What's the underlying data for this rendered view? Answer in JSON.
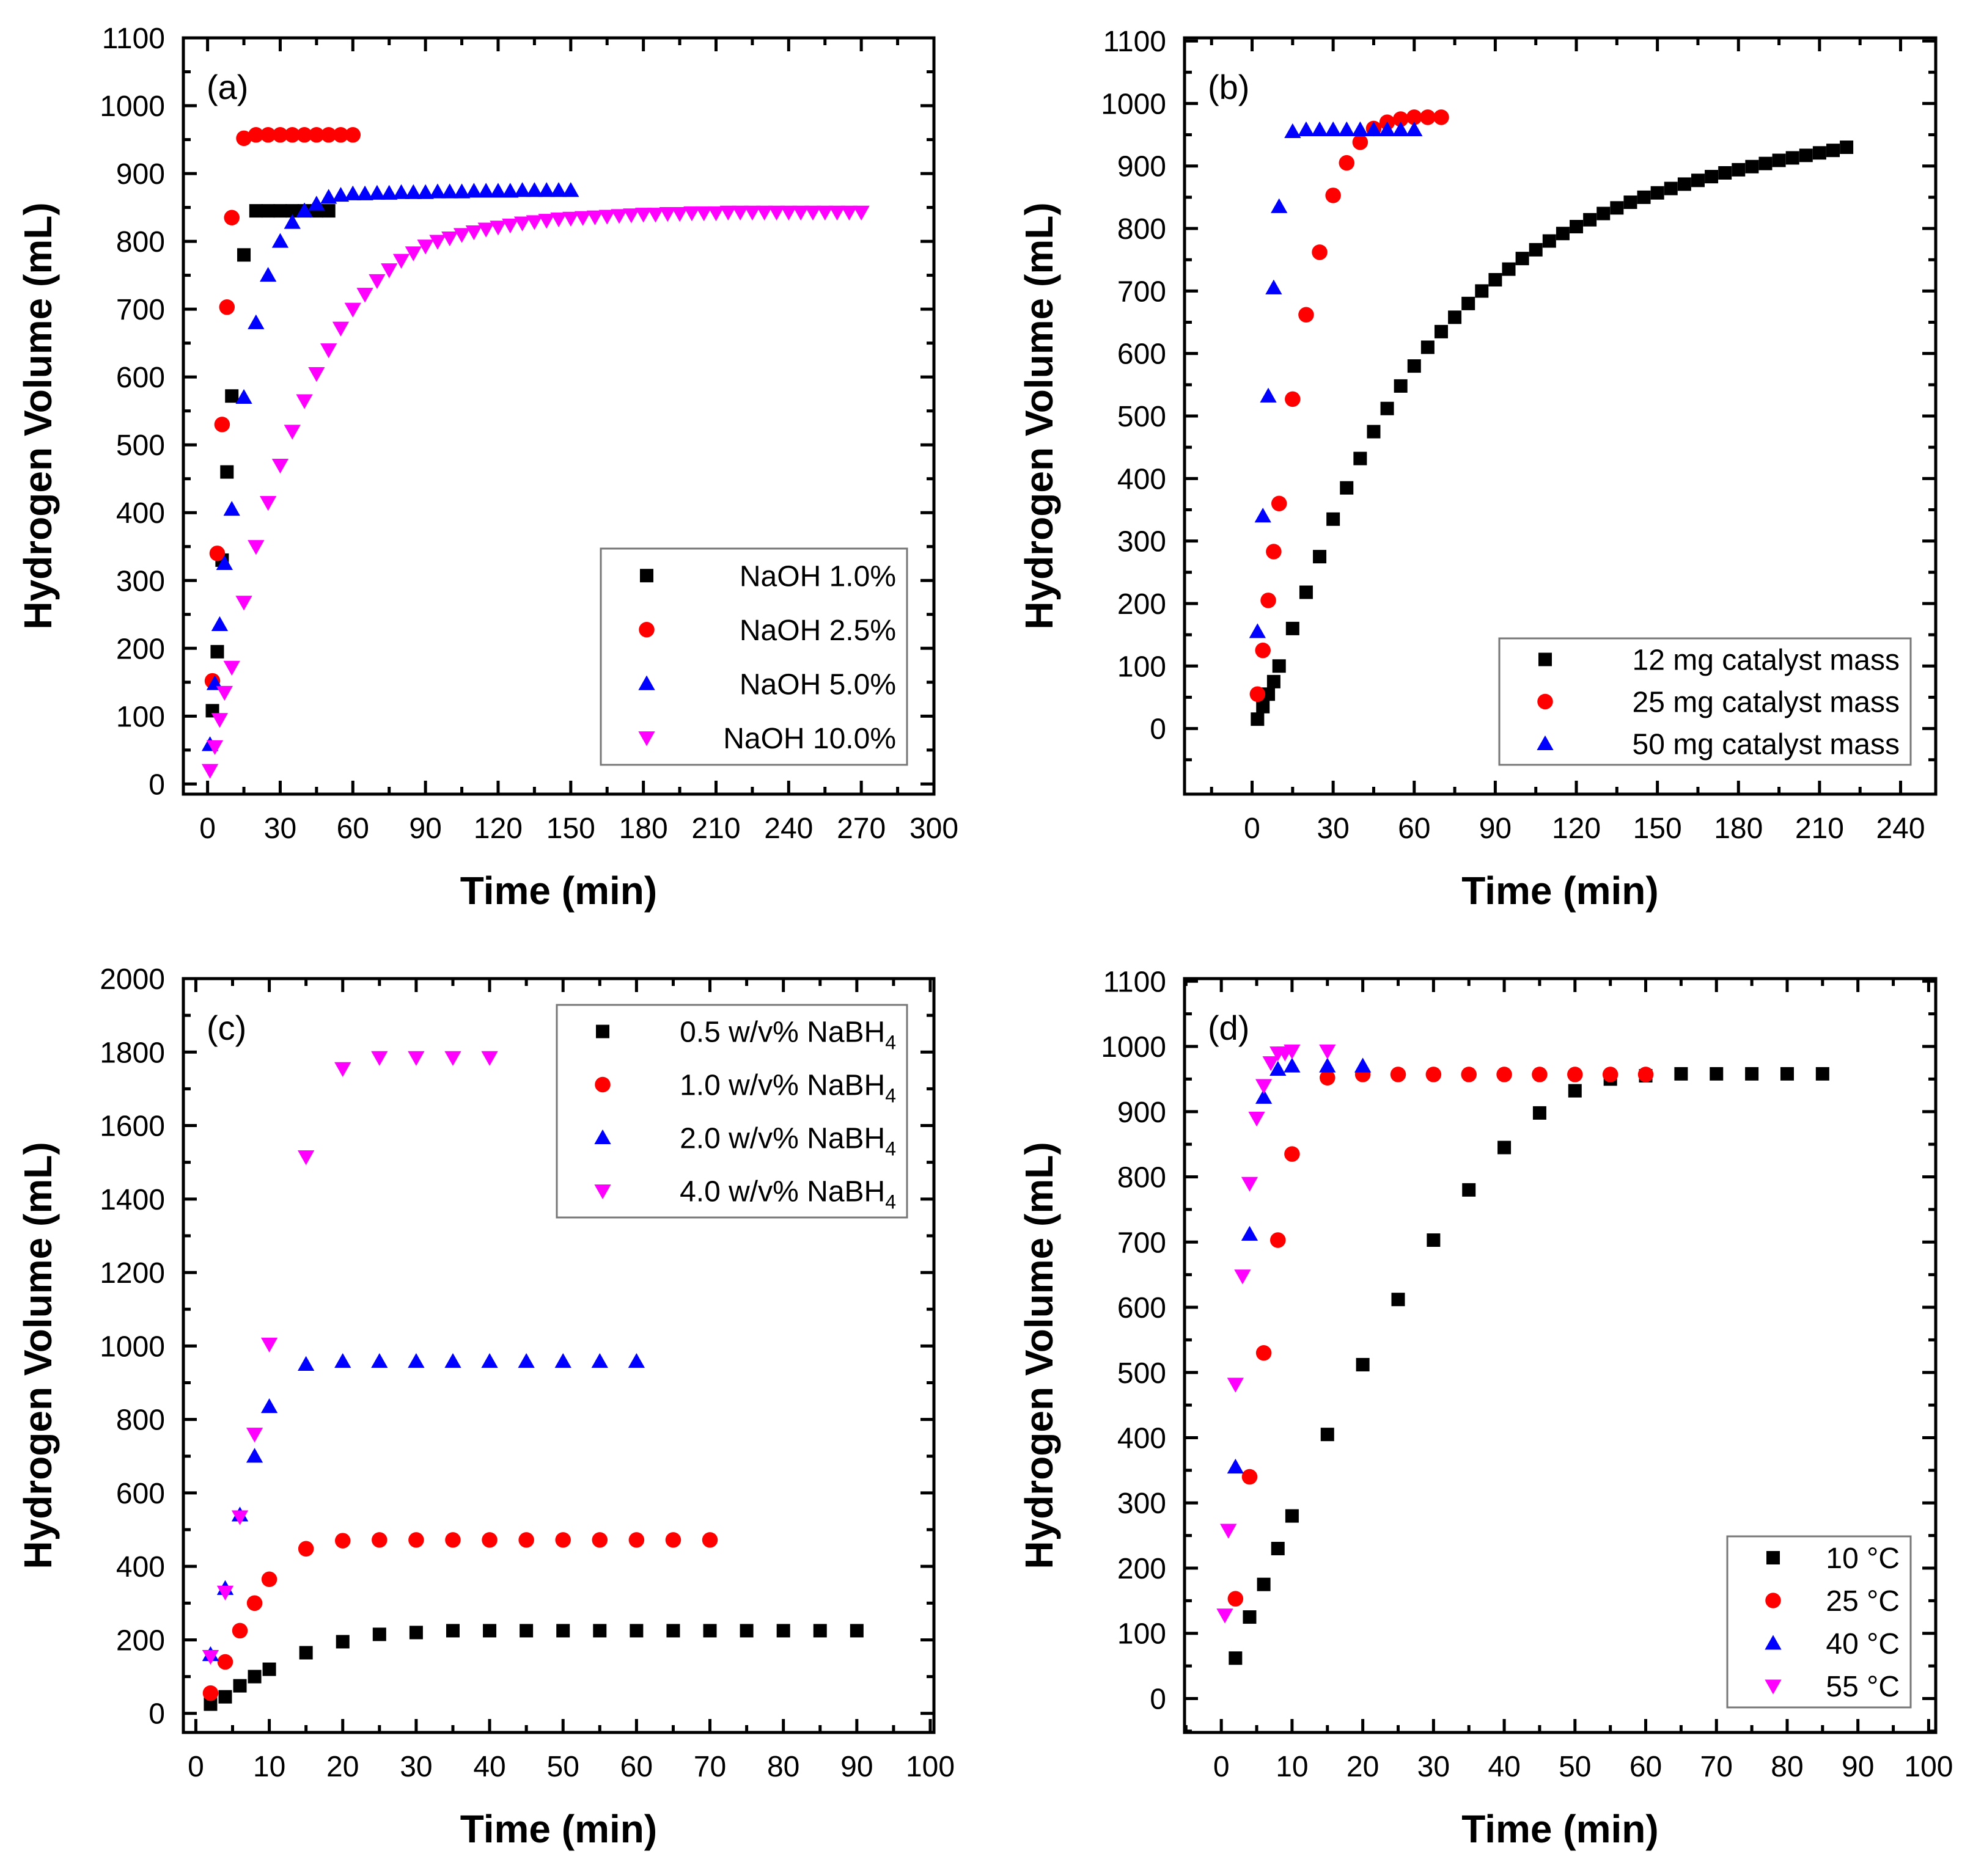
{
  "chart_data": [
    {
      "type": "scatter",
      "panel_label": "(a)",
      "xlabel": "Time (min)",
      "ylabel": "Hydrogen Volume (mL)",
      "xlim": [
        -10,
        300
      ],
      "ylim": [
        -15,
        1100
      ],
      "xticks": [
        0,
        30,
        60,
        90,
        120,
        150,
        180,
        210,
        240,
        270,
        300
      ],
      "yticks": [
        0,
        100,
        200,
        300,
        400,
        500,
        600,
        700,
        800,
        900,
        1000,
        1100
      ],
      "grid": false,
      "legend_position": "bottom-right",
      "series": [
        {
          "name": "NaOH  1.0%",
          "marker": "square",
          "color": "#000000",
          "x": [
            2,
            4,
            6,
            8,
            10,
            15,
            20,
            25,
            30,
            35,
            40,
            45,
            50
          ],
          "y": [
            108,
            195,
            330,
            460,
            572,
            780,
            845,
            845,
            845,
            845,
            845,
            845,
            845
          ]
        },
        {
          "name": "NaOH  2.5%",
          "marker": "circle",
          "color": "#ff0000",
          "x": [
            2,
            4,
            6,
            8,
            10,
            15,
            20,
            25,
            30,
            35,
            40,
            45,
            50,
            55,
            60
          ],
          "y": [
            152,
            340,
            530,
            703,
            835,
            952,
            957,
            957,
            957,
            957,
            957,
            957,
            957,
            957,
            957
          ]
        },
        {
          "name": "NaOH  5.0%",
          "marker": "triangle-up",
          "color": "#0000ff",
          "x": [
            1,
            3,
            5,
            7,
            10,
            15,
            20,
            25,
            30,
            35,
            40,
            45,
            50,
            55,
            60,
            65,
            70,
            75,
            80,
            85,
            90,
            95,
            100,
            105,
            110,
            115,
            120,
            125,
            130,
            135,
            140,
            145,
            150
          ],
          "y": [
            58,
            148,
            235,
            325,
            405,
            570,
            680,
            750,
            800,
            828,
            845,
            855,
            865,
            868,
            870,
            870,
            871,
            871,
            872,
            872,
            872,
            873,
            873,
            873,
            874,
            874,
            874,
            874,
            875,
            875,
            875,
            875,
            875
          ]
        },
        {
          "name": "NaOH  10.0%",
          "marker": "triangle-down",
          "color": "#ff00ff",
          "x": [
            1,
            3,
            5,
            7,
            10,
            15,
            20,
            25,
            30,
            35,
            40,
            45,
            50,
            55,
            60,
            65,
            70,
            75,
            80,
            85,
            90,
            95,
            100,
            105,
            110,
            115,
            120,
            125,
            130,
            135,
            140,
            145,
            150,
            155,
            160,
            165,
            170,
            175,
            180,
            185,
            190,
            195,
            200,
            205,
            210,
            215,
            220,
            225,
            230,
            235,
            240,
            245,
            250,
            255,
            260,
            265,
            270
          ],
          "y": [
            20,
            55,
            95,
            135,
            172,
            268,
            350,
            415,
            470,
            520,
            565,
            605,
            640,
            672,
            700,
            722,
            742,
            758,
            772,
            783,
            793,
            800,
            805,
            810,
            814,
            818,
            821,
            824,
            827,
            829,
            831,
            833,
            834,
            835,
            836,
            837,
            838,
            839,
            840,
            840,
            841,
            841,
            842,
            842,
            842,
            843,
            843,
            843,
            843,
            843,
            843,
            843,
            843,
            843,
            843,
            843,
            843
          ]
        }
      ]
    },
    {
      "type": "scatter",
      "panel_label": "(b)",
      "xlabel": "Time (min)",
      "ylabel": "Hydrogen Volume (mL)",
      "xlim": [
        -25,
        253
      ],
      "ylim": [
        -105,
        1105
      ],
      "xticks": [
        0,
        30,
        60,
        90,
        120,
        150,
        180,
        210,
        240
      ],
      "yticks": [
        0,
        100,
        200,
        300,
        400,
        500,
        600,
        700,
        800,
        900,
        1000,
        1100
      ],
      "grid": false,
      "legend_position": "bottom-right",
      "series": [
        {
          "name": "12 mg catalyst mass",
          "marker": "square",
          "color": "#000000",
          "x": [
            2,
            4,
            6,
            8,
            10,
            15,
            20,
            25,
            30,
            35,
            40,
            45,
            50,
            55,
            60,
            65,
            70,
            75,
            80,
            85,
            90,
            95,
            100,
            105,
            110,
            115,
            120,
            125,
            130,
            135,
            140,
            145,
            150,
            155,
            160,
            165,
            170,
            175,
            180,
            185,
            190,
            195,
            200,
            205,
            210,
            215,
            220
          ],
          "y": [
            15,
            35,
            55,
            75,
            100,
            160,
            218,
            275,
            335,
            385,
            432,
            475,
            512,
            548,
            580,
            610,
            635,
            658,
            680,
            700,
            718,
            735,
            752,
            766,
            780,
            792,
            803,
            814,
            824,
            833,
            842,
            850,
            857,
            864,
            871,
            877,
            883,
            889,
            894,
            899,
            904,
            909,
            913,
            917,
            921,
            925,
            930
          ]
        },
        {
          "name": "25 mg catalyst mass",
          "marker": "circle",
          "color": "#ff0000",
          "x": [
            2,
            4,
            6,
            8,
            10,
            15,
            20,
            25,
            30,
            35,
            40,
            45,
            50,
            55,
            60,
            65,
            70
          ],
          "y": [
            55,
            125,
            205,
            283,
            360,
            527,
            662,
            762,
            853,
            905,
            938,
            960,
            970,
            975,
            978,
            978,
            978
          ]
        },
        {
          "name": "50 mg catalyst mass",
          "marker": "triangle-up",
          "color": "#0000ff",
          "x": [
            2,
            4,
            6,
            8,
            10,
            15,
            20,
            25,
            30,
            35,
            40,
            45,
            50,
            55,
            60
          ],
          "y": [
            155,
            340,
            532,
            705,
            835,
            955,
            958,
            958,
            958,
            958,
            958,
            958,
            958,
            958,
            958
          ]
        }
      ]
    },
    {
      "type": "scatter",
      "panel_label": "(c)",
      "xlabel": "Time (min)",
      "ylabel": "Hydrogen Volume (mL)",
      "xlim": [
        -1.7,
        100.5
      ],
      "ylim": [
        -52,
        2000
      ],
      "xticks": [
        0,
        10,
        20,
        30,
        40,
        50,
        60,
        70,
        80,
        90,
        100
      ],
      "yticks": [
        0,
        200,
        400,
        600,
        800,
        1000,
        1200,
        1400,
        1600,
        1800,
        2000
      ],
      "grid": false,
      "legend_position": "top-right",
      "series": [
        {
          "name": "0.5 w/v% NaBH4",
          "marker": "square",
          "color": "#000000",
          "x": [
            2,
            4,
            6,
            8,
            10,
            15,
            20,
            25,
            30,
            35,
            40,
            45,
            50,
            55,
            60,
            65,
            70,
            75,
            80,
            85,
            90
          ],
          "y": [
            25,
            45,
            75,
            100,
            120,
            165,
            195,
            215,
            220,
            225,
            225,
            225,
            225,
            225,
            225,
            225,
            225,
            225,
            225,
            225,
            225
          ]
        },
        {
          "name": "1.0 w/v% NaBH4",
          "marker": "circle",
          "color": "#ff0000",
          "x": [
            2,
            4,
            6,
            8,
            10,
            15,
            20,
            25,
            30,
            35,
            40,
            45,
            50,
            55,
            60,
            65,
            70
          ],
          "y": [
            55,
            140,
            225,
            300,
            365,
            448,
            470,
            472,
            472,
            472,
            472,
            472,
            472,
            472,
            472,
            472,
            472
          ]
        },
        {
          "name": "2.0 w/v% NaBH4",
          "marker": "triangle-up",
          "color": "#0000ff",
          "x": [
            2,
            4,
            6,
            8,
            10,
            15,
            20,
            25,
            30,
            35,
            40,
            45,
            50,
            55,
            60
          ],
          "y": [
            160,
            340,
            540,
            700,
            835,
            950,
            958,
            958,
            958,
            958,
            958,
            958,
            958,
            958,
            958
          ]
        },
        {
          "name": "4.0 w/v% NaBH4",
          "marker": "triangle-down",
          "color": "#ff00ff",
          "x": [
            2,
            4,
            6,
            8,
            10,
            15,
            20,
            25,
            30,
            35,
            40
          ],
          "y": [
            155,
            330,
            535,
            760,
            1005,
            1515,
            1755,
            1785,
            1785,
            1785,
            1785
          ]
        }
      ]
    },
    {
      "type": "scatter",
      "panel_label": "(d)",
      "xlabel": "Time (min)",
      "ylabel": "Hydrogen Volume (mL)",
      "xlim": [
        -5.2,
        101
      ],
      "ylim": [
        -52,
        1104
      ],
      "xticks": [
        0,
        10,
        20,
        30,
        40,
        50,
        60,
        70,
        80,
        90,
        100
      ],
      "yticks": [
        0,
        100,
        200,
        300,
        400,
        500,
        600,
        700,
        800,
        900,
        1000,
        1100
      ],
      "grid": false,
      "legend_position": "bottom-right",
      "series": [
        {
          "name": "10 °C",
          "marker": "square",
          "color": "#000000",
          "x": [
            2,
            4,
            6,
            8,
            10,
            15,
            20,
            25,
            30,
            35,
            40,
            45,
            50,
            55,
            60,
            65,
            70,
            75,
            80,
            85
          ],
          "y": [
            62,
            125,
            175,
            230,
            280,
            405,
            512,
            612,
            703,
            780,
            845,
            898,
            932,
            950,
            955,
            958,
            958,
            958,
            958,
            958
          ]
        },
        {
          "name": "25 °C",
          "marker": "circle",
          "color": "#ff0000",
          "x": [
            2,
            4,
            6,
            8,
            10,
            15,
            20,
            25,
            30,
            35,
            40,
            45,
            50,
            55,
            60
          ],
          "y": [
            153,
            340,
            530,
            703,
            835,
            952,
            957,
            957,
            957,
            957,
            957,
            957,
            957,
            957,
            957
          ]
        },
        {
          "name": "40 °C",
          "marker": "triangle-up",
          "color": "#0000ff",
          "x": [
            2,
            4,
            6,
            8,
            10,
            15,
            20
          ],
          "y": [
            355,
            712,
            922,
            965,
            970,
            970,
            970
          ]
        },
        {
          "name": "55 °C",
          "marker": "triangle-down",
          "color": "#ff00ff",
          "x": [
            0.5,
            1,
            2,
            3,
            4,
            5,
            6,
            7,
            8,
            9,
            10,
            15
          ],
          "y": [
            128,
            258,
            482,
            648,
            790,
            890,
            940,
            975,
            990,
            990,
            993,
            993
          ]
        }
      ]
    }
  ]
}
